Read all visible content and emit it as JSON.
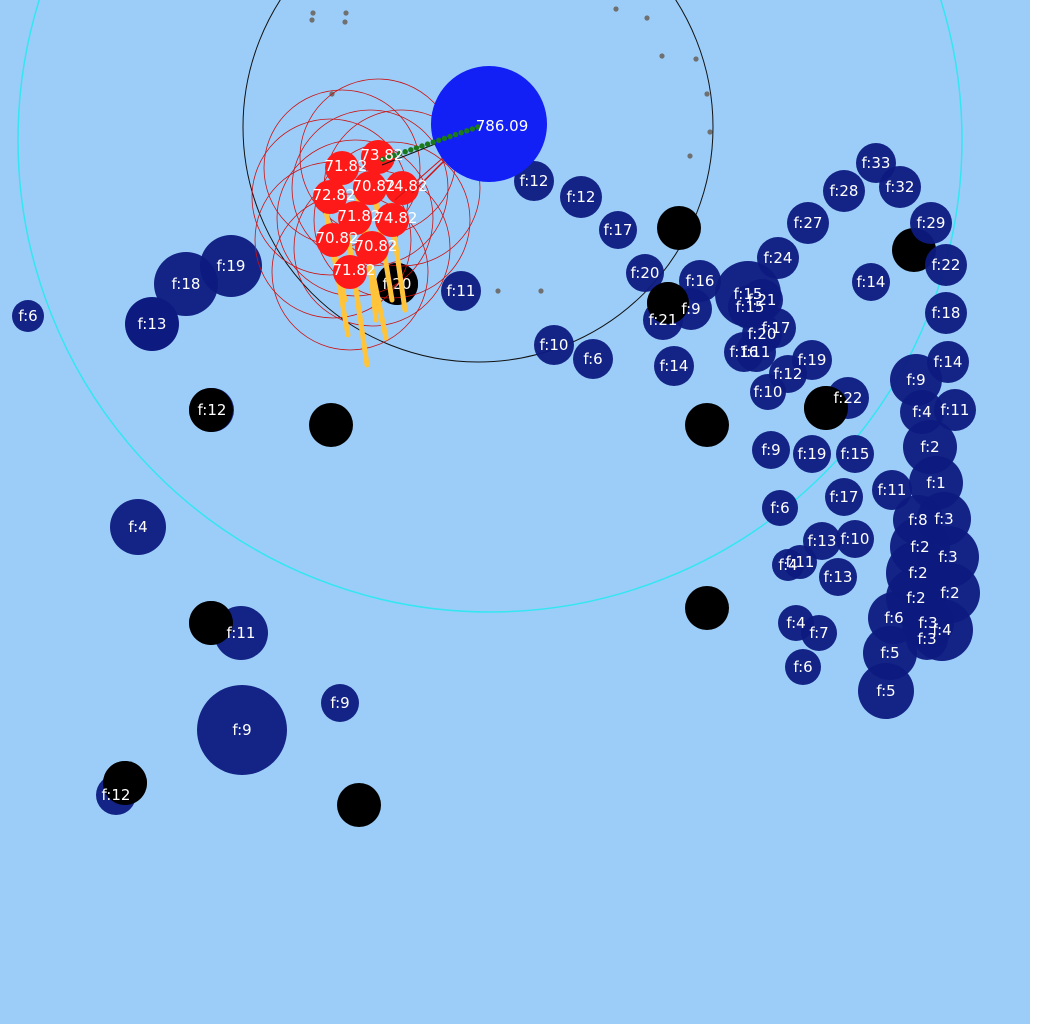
{
  "colors": {
    "background": "#9ccdf8",
    "food": "#0d1a80",
    "virus": "#000000",
    "player": "#1220f5",
    "enemy": "#ff1a1a",
    "vision_circle": "#33e6f2",
    "range_circle": "#111111",
    "dash_trail": "#ffc43a"
  },
  "player": {
    "label": "786.09"
  },
  "enemies": [
    {
      "label": "71.82"
    },
    {
      "label": "73.82"
    },
    {
      "label": "72.82"
    },
    {
      "label": "70.82"
    },
    {
      "label": "74.82"
    },
    {
      "label": "71.82"
    },
    {
      "label": "74.82"
    },
    {
      "label": "70.82"
    },
    {
      "label": "70.82"
    },
    {
      "label": "71.82"
    }
  ],
  "food": [
    {
      "label": "f:6"
    },
    {
      "label": "f:18"
    },
    {
      "label": "f:19"
    },
    {
      "label": "f:13"
    },
    {
      "label": "f:20"
    },
    {
      "label": "f:11"
    },
    {
      "label": "f:12"
    },
    {
      "label": "f:12"
    },
    {
      "label": "f:17"
    },
    {
      "label": "f:20"
    },
    {
      "label": "f:16"
    },
    {
      "label": "f:9"
    },
    {
      "label": "f:21"
    },
    {
      "label": "f:10"
    },
    {
      "label": "f:6"
    },
    {
      "label": "f:14"
    },
    {
      "label": "f:15"
    },
    {
      "label": "f:21"
    },
    {
      "label": "f:15"
    },
    {
      "label": "f:17"
    },
    {
      "label": "f:20"
    },
    {
      "label": "f:16"
    },
    {
      "label": "f:11"
    },
    {
      "label": "f:24"
    },
    {
      "label": "f:27"
    },
    {
      "label": "f:28"
    },
    {
      "label": "f:33"
    },
    {
      "label": "f:32"
    },
    {
      "label": "f:29"
    },
    {
      "label": "f:22"
    },
    {
      "label": "f:14"
    },
    {
      "label": "f:18"
    },
    {
      "label": "f:14"
    },
    {
      "label": "f:9"
    },
    {
      "label": "f:4"
    },
    {
      "label": "f:11"
    },
    {
      "label": "f:19"
    },
    {
      "label": "f:12"
    },
    {
      "label": "f:10"
    },
    {
      "label": "f:22"
    },
    {
      "label": "f:9"
    },
    {
      "label": "f:19"
    },
    {
      "label": "f:15"
    },
    {
      "label": "f:2"
    },
    {
      "label": "f:1"
    },
    {
      "label": "f:11"
    },
    {
      "label": "f:17"
    },
    {
      "label": "f:6"
    },
    {
      "label": "f:8"
    },
    {
      "label": "f:3"
    },
    {
      "label": "f:13"
    },
    {
      "label": "f:10"
    },
    {
      "label": "f:2"
    },
    {
      "label": "f:3"
    },
    {
      "label": "f:4"
    },
    {
      "label": "f:11"
    },
    {
      "label": "f:13"
    },
    {
      "label": "f:2"
    },
    {
      "label": "f:2"
    },
    {
      "label": "f:2"
    },
    {
      "label": "f:6"
    },
    {
      "label": "f:3"
    },
    {
      "label": "f:4"
    },
    {
      "label": "f:3"
    },
    {
      "label": "f:4"
    },
    {
      "label": "f:7"
    },
    {
      "label": "f:5"
    },
    {
      "label": "f:6"
    },
    {
      "label": "f:5"
    },
    {
      "label": "f:4"
    },
    {
      "label": "f:12"
    },
    {
      "label": "f:11"
    },
    {
      "label": "f:9"
    },
    {
      "label": "f:9"
    },
    {
      "label": "f:12"
    }
  ]
}
